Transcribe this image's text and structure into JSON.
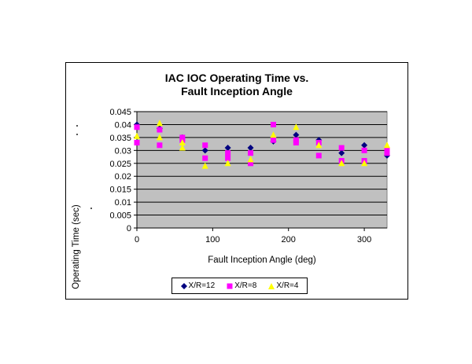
{
  "chart_data": {
    "type": "scatter",
    "title_lines": [
      "IAC IOC Operating Time vs.",
      "Fault Inception Angle"
    ],
    "xlabel": "Fault Inception Angle (deg)",
    "ylabel": "Operating Time (sec)",
    "xlim": [
      0,
      330
    ],
    "ylim": [
      0,
      0.045
    ],
    "x_ticks": [
      0,
      100,
      200,
      300
    ],
    "x_tick_labels": [
      "0",
      "100",
      "200",
      "300"
    ],
    "y_ticks": [
      0,
      0.005,
      0.01,
      0.015,
      0.02,
      0.025,
      0.03,
      0.035,
      0.04,
      0.045
    ],
    "y_tick_labels": [
      "0",
      "0.005",
      "0.01",
      "0.015",
      "0.02",
      "0.025",
      "0.03",
      "0.035",
      "0.04",
      "0.045"
    ],
    "grid": "horizontal",
    "plot_background": "#c0c0c0",
    "legend_position": "bottom",
    "series": [
      {
        "name": "X/R=12",
        "marker": "diamond",
        "color": "#000080",
        "points": [
          {
            "x": 0,
            "y": 0.04
          },
          {
            "x": 30,
            "y": 0.0385
          },
          {
            "x": 60,
            "y": 0.035
          },
          {
            "x": 90,
            "y": 0.03
          },
          {
            "x": 120,
            "y": 0.031
          },
          {
            "x": 150,
            "y": 0.031
          },
          {
            "x": 180,
            "y": 0.0335
          },
          {
            "x": 210,
            "y": 0.036
          },
          {
            "x": 240,
            "y": 0.034
          },
          {
            "x": 270,
            "y": 0.029
          },
          {
            "x": 300,
            "y": 0.032
          },
          {
            "x": 330,
            "y": 0.028
          }
        ]
      },
      {
        "name": "X/R=8",
        "marker": "square",
        "color": "#ff00ff",
        "points": [
          {
            "x": 0,
            "y": 0.039
          },
          {
            "x": 0,
            "y": 0.033
          },
          {
            "x": 30,
            "y": 0.038
          },
          {
            "x": 30,
            "y": 0.032
          },
          {
            "x": 60,
            "y": 0.035
          },
          {
            "x": 60,
            "y": 0.034
          },
          {
            "x": 90,
            "y": 0.032
          },
          {
            "x": 90,
            "y": 0.027
          },
          {
            "x": 120,
            "y": 0.029
          },
          {
            "x": 120,
            "y": 0.027
          },
          {
            "x": 150,
            "y": 0.029
          },
          {
            "x": 150,
            "y": 0.025
          },
          {
            "x": 180,
            "y": 0.04
          },
          {
            "x": 180,
            "y": 0.034
          },
          {
            "x": 210,
            "y": 0.034
          },
          {
            "x": 210,
            "y": 0.033
          },
          {
            "x": 240,
            "y": 0.033
          },
          {
            "x": 240,
            "y": 0.028
          },
          {
            "x": 270,
            "y": 0.031
          },
          {
            "x": 270,
            "y": 0.026
          },
          {
            "x": 300,
            "y": 0.03
          },
          {
            "x": 300,
            "y": 0.026
          },
          {
            "x": 330,
            "y": 0.03
          },
          {
            "x": 330,
            "y": 0.029
          }
        ]
      },
      {
        "name": "X/R=4",
        "marker": "triangle",
        "color": "#ffff00",
        "points": [
          {
            "x": 0,
            "y": 0.0355
          },
          {
            "x": 30,
            "y": 0.0405
          },
          {
            "x": 30,
            "y": 0.035
          },
          {
            "x": 60,
            "y": 0.033
          },
          {
            "x": 60,
            "y": 0.031
          },
          {
            "x": 90,
            "y": 0.024
          },
          {
            "x": 120,
            "y": 0.025
          },
          {
            "x": 150,
            "y": 0.0265
          },
          {
            "x": 180,
            "y": 0.036
          },
          {
            "x": 210,
            "y": 0.039
          },
          {
            "x": 240,
            "y": 0.032
          },
          {
            "x": 270,
            "y": 0.025
          },
          {
            "x": 300,
            "y": 0.025
          },
          {
            "x": 330,
            "y": 0.032
          }
        ]
      }
    ]
  }
}
